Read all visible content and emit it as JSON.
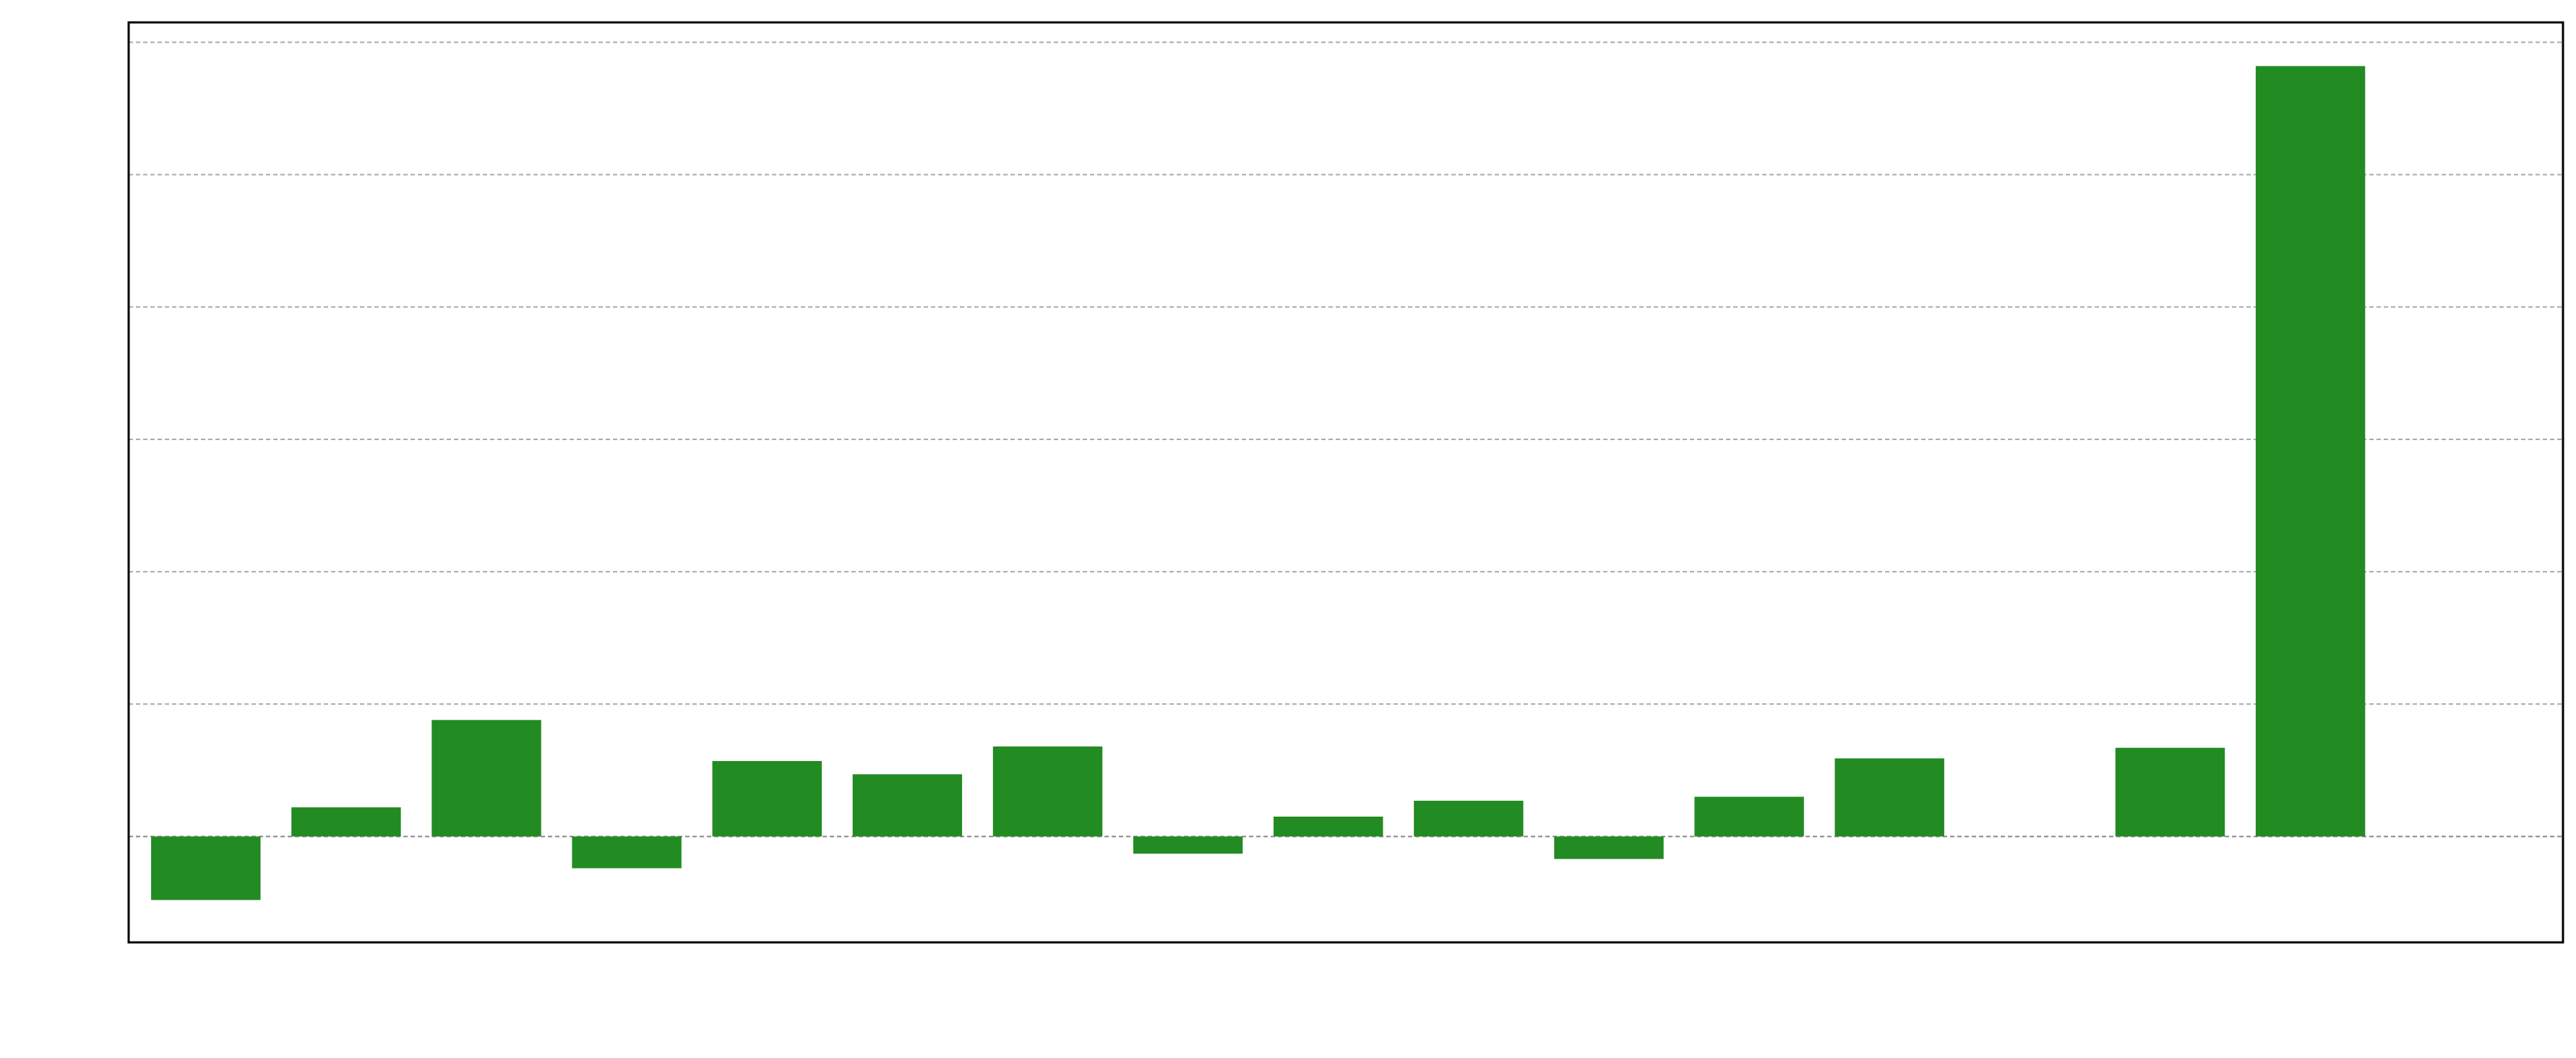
{
  "chart_data": {
    "type": "bar",
    "title": "",
    "xlabel": "",
    "ylabel": "",
    "categories": [
      "",
      "",
      "",
      "",
      "",
      "",
      "",
      "",
      "",
      "",
      "",
      "",
      "",
      "",
      "",
      "",
      ""
    ],
    "values": [
      -0.48,
      0.22,
      0.88,
      -0.24,
      0.57,
      0.47,
      0.68,
      -0.13,
      0.15,
      0.27,
      -0.17,
      0.3,
      0.59,
      0.0,
      0.67,
      5.82,
      null
    ],
    "ylim": [
      -0.8,
      6.15
    ],
    "xlim": [
      -0.55,
      16.8
    ],
    "yticks": [
      0,
      1,
      2,
      3,
      4,
      5,
      6
    ],
    "grid": true,
    "grid_axis": "y",
    "grid_style": "dashed",
    "bar_color": "#228B22",
    "grid_color": "#aaaaaa",
    "zero_line_color": "#888888"
  }
}
